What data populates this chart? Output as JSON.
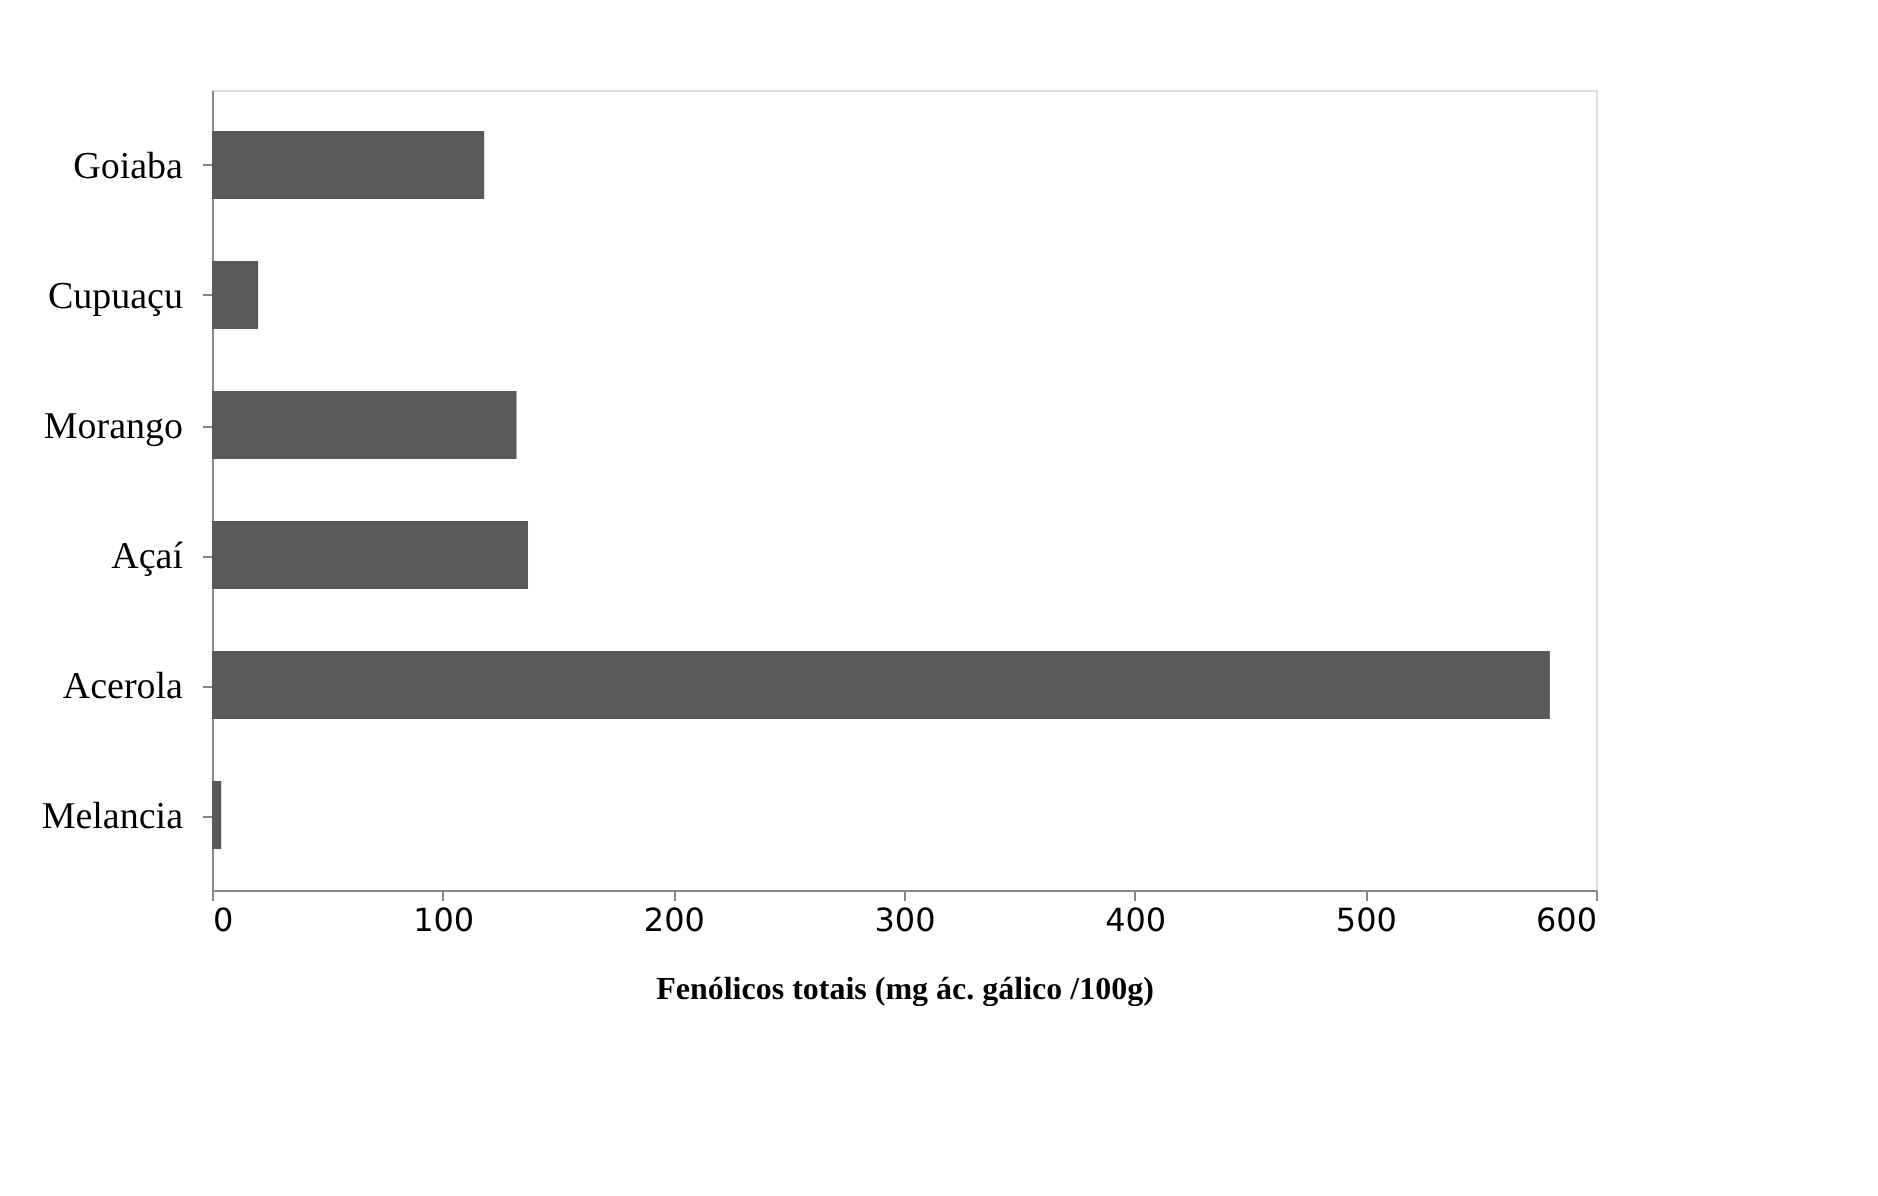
{
  "chart_data": {
    "type": "bar",
    "orientation": "horizontal",
    "xlabel": "Fenólicos totais (mg ác. gálico /100g)",
    "categories": [
      "Goiaba",
      "Cupuaçu",
      "Morango",
      "Açaí",
      "Acerola",
      "Melancia"
    ],
    "values": [
      118,
      20,
      132,
      137,
      580,
      4
    ],
    "color": "#595959",
    "xlim": [
      0,
      600
    ],
    "xticks": [
      0,
      100,
      200,
      300,
      400,
      500,
      600
    ],
    "grid": false
  }
}
